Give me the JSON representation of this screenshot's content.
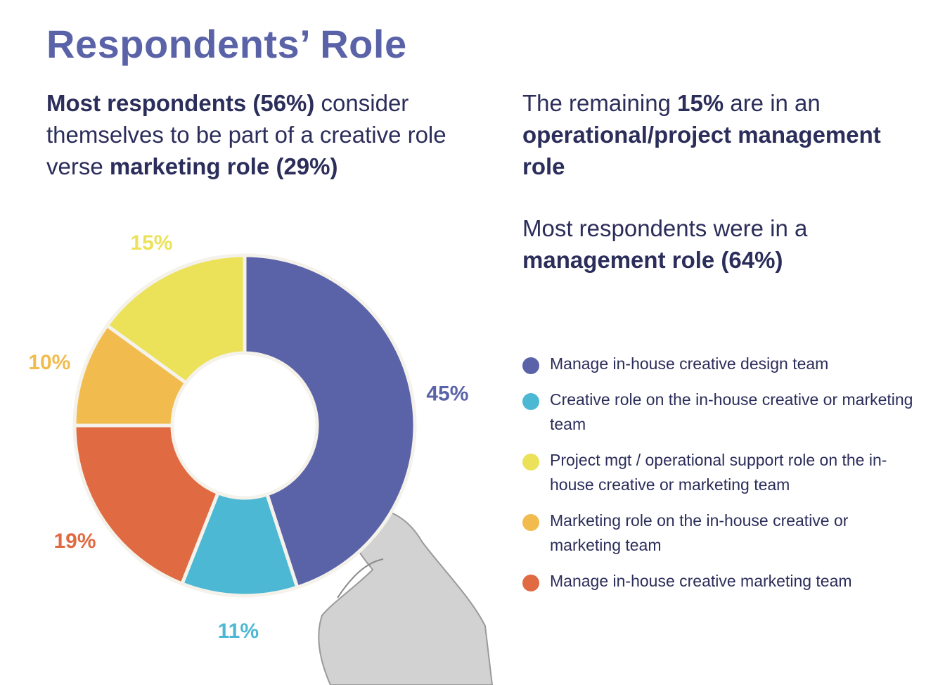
{
  "title": "Respondents’ Role",
  "summary_left": {
    "b1": "Most respondents (56%)",
    "t1": " consider themselves to be part of a creative role verse ",
    "b2": "marketing role (29%)"
  },
  "summary_right_1": {
    "t1": "The remaining ",
    "b1": "15%",
    "t2": " are in an ",
    "b2": "operational/project management role"
  },
  "summary_right_2": {
    "t1": "Most respondents were in a ",
    "b1": "management role (64%)"
  },
  "chart_data": {
    "type": "pie",
    "donut": true,
    "legend_position": "right",
    "series": [
      {
        "name": "Manage in-house creative design team",
        "value": 45,
        "label": "45%",
        "color": "#5b63a8"
      },
      {
        "name": "Creative role on the in-house creative or marketing team",
        "value": 11,
        "label": "11%",
        "color": "#4db8d4"
      },
      {
        "name": "Manage in-house creative marketing team",
        "value": 19,
        "label": "19%",
        "color": "#e06a42"
      },
      {
        "name": "Marketing role on the in-house creative or marketing team",
        "value": 10,
        "label": "10%",
        "color": "#f2bb4e"
      },
      {
        "name": "Project mgt / operational support role on the in-house creative or marketing team",
        "value": 15,
        "label": "15%",
        "color": "#ebe25a"
      }
    ]
  },
  "legend": [
    {
      "label": "Manage in-house creative design team",
      "color": "#5b63a8"
    },
    {
      "label": "Creative role on the in-house creative or marketing team",
      "color": "#4db8d4"
    },
    {
      "label": "Project mgt / operational support role on the in-house creative or marketing team",
      "color": "#ebe25a"
    },
    {
      "label": "Marketing role on the in-house creative or marketing team",
      "color": "#f2bb4e"
    },
    {
      "label": "Manage in-house creative marketing team",
      "color": "#e06a42"
    }
  ]
}
